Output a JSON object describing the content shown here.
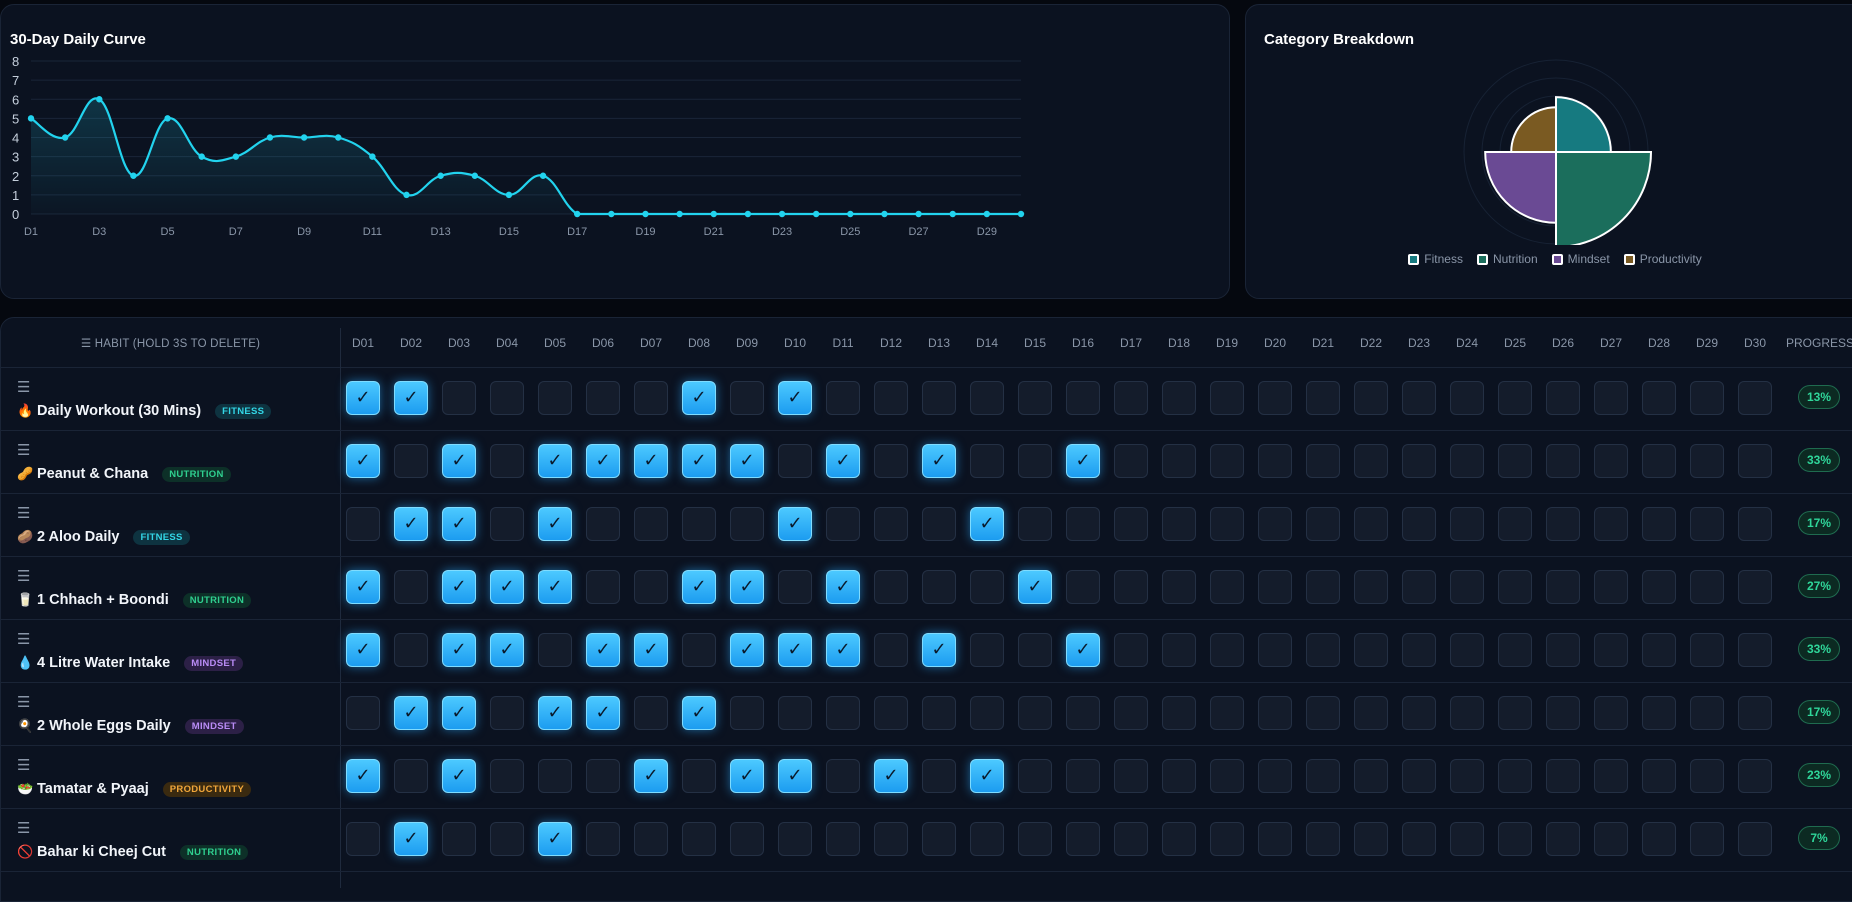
{
  "curve": {
    "title": "30-Day Daily Curve",
    "chart_data": {
      "type": "line",
      "x": [
        "D1",
        "D2",
        "D3",
        "D4",
        "D5",
        "D6",
        "D7",
        "D8",
        "D9",
        "D10",
        "D11",
        "D12",
        "D13",
        "D14",
        "D15",
        "D16",
        "D17",
        "D18",
        "D19",
        "D20",
        "D21",
        "D22",
        "D23",
        "D24",
        "D25",
        "D26",
        "D27",
        "D28",
        "D29",
        "D30"
      ],
      "tick_labels": [
        "D1",
        "D3",
        "D5",
        "D7",
        "D9",
        "D11",
        "D13",
        "D15",
        "D17",
        "D19",
        "D21",
        "D23",
        "D25",
        "D27",
        "D29"
      ],
      "values": [
        5,
        4,
        6,
        2,
        5,
        3,
        3,
        4,
        4,
        4,
        3,
        1,
        2,
        2,
        1,
        2,
        0,
        0,
        0,
        0,
        0,
        0,
        0,
        0,
        0,
        0,
        0,
        0,
        0,
        0
      ],
      "ylim": [
        0,
        8
      ],
      "yticks": [
        "0",
        "1",
        "2",
        "3",
        "4",
        "5",
        "6",
        "7",
        "8"
      ],
      "color": "#22d3ee",
      "grid": true
    }
  },
  "category": {
    "title": "Category Breakdown",
    "chart_data": {
      "type": "polar-area",
      "categories": [
        "Fitness",
        "Nutrition",
        "Mindset",
        "Productivity"
      ],
      "values": [
        3,
        9,
        5,
        2
      ],
      "colors": [
        "#167a80",
        "#1b6e5c",
        "#6a4a94",
        "#7a5a22"
      ]
    }
  },
  "grid": {
    "habit_header": "☰ HABIT (HOLD 3S TO DELETE)",
    "progress_header": "PROGRESS",
    "days": [
      "D01",
      "D02",
      "D03",
      "D04",
      "D05",
      "D06",
      "D07",
      "D08",
      "D09",
      "D10",
      "D11",
      "D12",
      "D13",
      "D14",
      "D15",
      "D16",
      "D17",
      "D18",
      "D19",
      "D20",
      "D21",
      "D22",
      "D23",
      "D24",
      "D25",
      "D26",
      "D27",
      "D28",
      "D29",
      "D30"
    ],
    "drag_glyph": "☰",
    "habits": [
      {
        "icon": "🔥",
        "name": "Daily Workout (30 Mins)",
        "tag": "FITNESS",
        "tag_class": "tag-fitness",
        "progress": "13%",
        "checks": [
          1,
          2,
          8,
          10
        ]
      },
      {
        "icon": "🥜",
        "name": "Peanut & Chana",
        "tag": "NUTRITION",
        "tag_class": "tag-nutrition",
        "progress": "33%",
        "checks": [
          1,
          3,
          5,
          6,
          7,
          8,
          9,
          11,
          13,
          16
        ]
      },
      {
        "icon": "🥔",
        "name": "2 Aloo Daily",
        "tag": "FITNESS",
        "tag_class": "tag-fitness",
        "progress": "17%",
        "checks": [
          2,
          3,
          5,
          10,
          14
        ]
      },
      {
        "icon": "🥛",
        "name": "1 Chhach + Boondi",
        "tag": "NUTRITION",
        "tag_class": "tag-nutrition",
        "progress": "27%",
        "checks": [
          1,
          3,
          4,
          5,
          8,
          9,
          11,
          15
        ]
      },
      {
        "icon": "💧",
        "name": "4 Litre Water Intake",
        "tag": "MINDSET",
        "tag_class": "tag-mindset",
        "progress": "33%",
        "checks": [
          1,
          3,
          4,
          6,
          7,
          9,
          10,
          11,
          13,
          16
        ]
      },
      {
        "icon": "🍳",
        "name": "2 Whole Eggs Daily",
        "tag": "MINDSET",
        "tag_class": "tag-mindset",
        "progress": "17%",
        "checks": [
          2,
          3,
          5,
          6,
          8
        ]
      },
      {
        "icon": "🥗",
        "name": "Tamatar & Pyaaj",
        "tag": "PRODUCTIVITY",
        "tag_class": "tag-productivity",
        "progress": "23%",
        "checks": [
          1,
          3,
          7,
          9,
          10,
          12,
          14
        ]
      },
      {
        "icon": "🚫",
        "name": "Bahar ki Cheej Cut",
        "tag": "NUTRITION",
        "tag_class": "tag-nutrition",
        "progress": "7%",
        "checks": [
          2,
          5
        ]
      }
    ]
  }
}
